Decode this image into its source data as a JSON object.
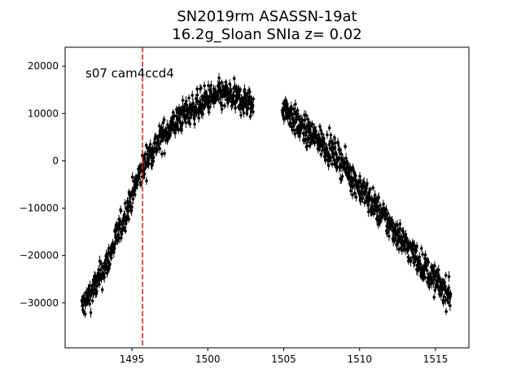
{
  "chart_data": {
    "type": "scatter",
    "title_line1": "SN2019rm  ASASSN-19at",
    "title_line2": "16.2g_Sloan SNIa z= 0.02",
    "annotation": "s07 cam4ccd4",
    "xlabel": "",
    "ylabel": "",
    "xlim": [
      1490.6,
      1517.2
    ],
    "ylim": [
      -39500,
      24000
    ],
    "x_ticks": [
      1495,
      1500,
      1505,
      1510,
      1515
    ],
    "x_tick_labels": [
      "1495",
      "1500",
      "1505",
      "1510",
      "1515"
    ],
    "y_ticks": [
      -30000,
      -20000,
      -10000,
      0,
      10000,
      20000
    ],
    "y_tick_labels": [
      "−30000",
      "−20000",
      "−10000",
      "0",
      "10000",
      "20000"
    ],
    "grid": false,
    "legend": "none",
    "marker_color": "#000000",
    "vline": {
      "x": 1495.7,
      "color": "#d62728",
      "style": "dashed"
    },
    "series": [
      {
        "segments": [
          {
            "x": [
              1491.7,
              1492.0,
              1492.5,
              1493.0,
              1493.5,
              1494.0,
              1494.5,
              1495.0,
              1495.5,
              1496.0,
              1496.5,
              1497.0,
              1497.5,
              1498.0,
              1498.5,
              1499.0,
              1499.5,
              1500.0,
              1500.5,
              1501.0,
              1501.5,
              1502.0,
              1502.5,
              1503.0
            ],
            "y": [
              -31000,
              -29500,
              -27000,
              -24000,
              -20500,
              -16000,
              -12000,
              -7500,
              -3000,
              500,
              3000,
              5000,
              7000,
              8500,
              10000,
              11000,
              12000,
              13000,
              13500,
              14000,
              13500,
              13000,
              12500,
              11500
            ]
          },
          {
            "x": [
              1504.9,
              1505.5,
              1506.0,
              1506.5,
              1507.0,
              1507.5,
              1508.0,
              1508.5,
              1509.0,
              1509.5,
              1510.0,
              1510.5,
              1511.0,
              1511.5,
              1512.0,
              1512.5,
              1513.0,
              1513.5,
              1514.0,
              1514.5,
              1515.0,
              1515.5,
              1516.0
            ],
            "y": [
              12000,
              9500,
              7500,
              6000,
              5000,
              4000,
              2500,
              1000,
              -1000,
              -3500,
              -5500,
              -7500,
              -9500,
              -11500,
              -13500,
              -15500,
              -17500,
              -19500,
              -21500,
              -23500,
              -25500,
              -27000,
              -28500
            ]
          }
        ],
        "scatter": 2200,
        "yerr": 900,
        "points_per_day": 18
      }
    ]
  }
}
